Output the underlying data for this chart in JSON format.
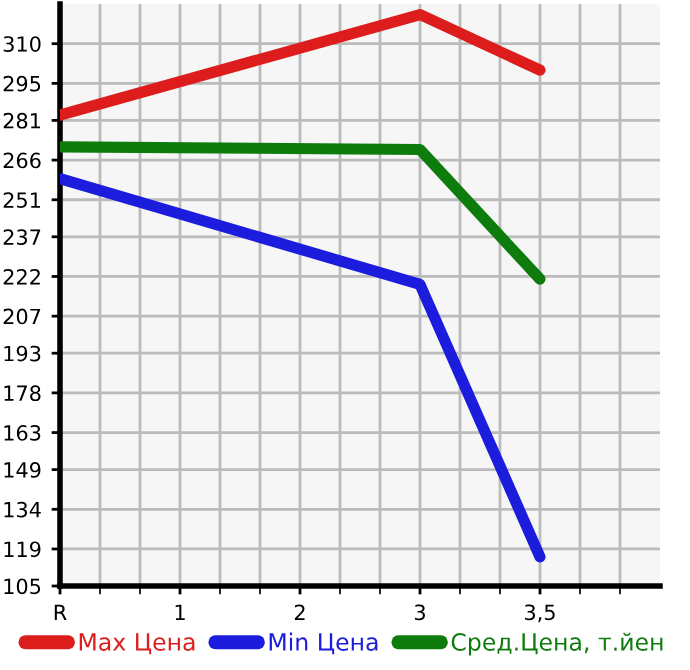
{
  "chart_data": {
    "type": "line",
    "categories": [
      "R",
      "1",
      "2",
      "3",
      "3,5"
    ],
    "series": [
      {
        "name": "Max Цена",
        "color": "#dd1c1c",
        "values": [
          283,
          null,
          null,
          321,
          300
        ]
      },
      {
        "name": "Min Цена",
        "color": "#1c1cdd",
        "values": [
          259,
          null,
          null,
          219,
          116
        ]
      },
      {
        "name": "Сред.Цена, т.йен",
        "color": "#0d7c0d",
        "values": [
          271,
          null,
          null,
          270,
          221
        ]
      }
    ],
    "ylim": [
      105,
      325
    ],
    "yticks": [
      105,
      119,
      134,
      149,
      163,
      178,
      193,
      207,
      222,
      237,
      251,
      266,
      281,
      295,
      310
    ],
    "grid": true,
    "legend": "bottom",
    "marker": "none",
    "line_style": "solid"
  }
}
